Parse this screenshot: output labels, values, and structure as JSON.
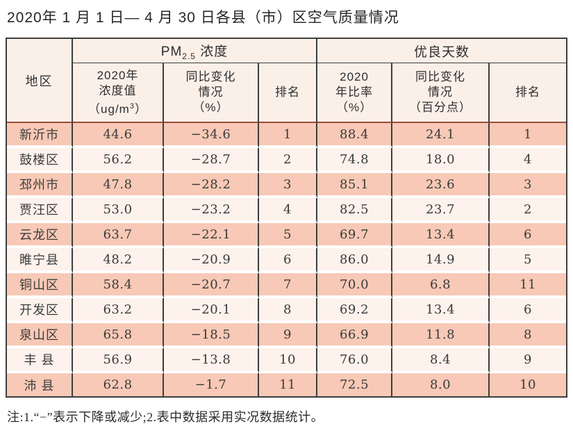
{
  "page": {
    "title": "2020年 1 月 1 日— 4 月 30 日各县（市）区空气质量情况",
    "note": "注:1.“−”表示下降或减少;2.表中数据采用实况数据统计。"
  },
  "colors": {
    "row_salmon": "#f7c9b6",
    "row_light": "#fdf2ec",
    "header_bg": "#fbf0e8",
    "grid_line": "#3d3d3d",
    "header_rule_maroon": "#9c4b3b"
  },
  "table": {
    "header": {
      "region": "地区",
      "pm_group_base": "PM",
      "pm_group_sub": "2.5",
      "pm_group_rest": " 浓度",
      "good_group": "优良天数",
      "conc_l1": "2020年",
      "conc_l2": "浓度值",
      "conc_l3_pre": "（ug/m",
      "conc_l3_sup": "3",
      "conc_l3_post": "）",
      "pm_change_l1": "同比变化",
      "pm_change_l2": "情况",
      "pm_change_l3": "（%）",
      "pm_rank": "排名",
      "ratio_l1": "2020",
      "ratio_l2": "年比率",
      "ratio_l3": "（%）",
      "good_change_l1": "同比变化",
      "good_change_l2": "情况",
      "good_change_l3": "（百分点）",
      "good_rank": "排名"
    },
    "rows": [
      {
        "region": "新沂市",
        "pm_value": "44.6",
        "pm_change": "−34.6",
        "pm_rank": "1",
        "good_ratio": "88.4",
        "good_change": "24.1",
        "good_rank": "1"
      },
      {
        "region": "鼓楼区",
        "pm_value": "56.2",
        "pm_change": "−28.7",
        "pm_rank": "2",
        "good_ratio": "74.8",
        "good_change": "18.0",
        "good_rank": "4"
      },
      {
        "region": "邳州市",
        "pm_value": "47.8",
        "pm_change": "−28.2",
        "pm_rank": "3",
        "good_ratio": "85.1",
        "good_change": "23.6",
        "good_rank": "3"
      },
      {
        "region": "贾汪区",
        "pm_value": "53.0",
        "pm_change": "−23.2",
        "pm_rank": "4",
        "good_ratio": "82.5",
        "good_change": "23.7",
        "good_rank": "2"
      },
      {
        "region": "云龙区",
        "pm_value": "63.7",
        "pm_change": "−22.1",
        "pm_rank": "5",
        "good_ratio": "69.7",
        "good_change": "13.4",
        "good_rank": "6"
      },
      {
        "region": "睢宁县",
        "pm_value": "48.2",
        "pm_change": "−20.9",
        "pm_rank": "6",
        "good_ratio": "86.0",
        "good_change": "14.9",
        "good_rank": "5"
      },
      {
        "region": "铜山区",
        "pm_value": "58.4",
        "pm_change": "−20.7",
        "pm_rank": "7",
        "good_ratio": "70.0",
        "good_change": "6.8",
        "good_rank": "11"
      },
      {
        "region": "开发区",
        "pm_value": "63.2",
        "pm_change": "−20.1",
        "pm_rank": "8",
        "good_ratio": "69.2",
        "good_change": "13.4",
        "good_rank": "6"
      },
      {
        "region": "泉山区",
        "pm_value": "65.8",
        "pm_change": "−18.5",
        "pm_rank": "9",
        "good_ratio": "66.9",
        "good_change": "11.8",
        "good_rank": "8"
      },
      {
        "region": "丰 县",
        "pm_value": "56.9",
        "pm_change": "−13.8",
        "pm_rank": "10",
        "good_ratio": "76.0",
        "good_change": "8.4",
        "good_rank": "9"
      },
      {
        "region": "沛 县",
        "pm_value": "62.8",
        "pm_change": "−1.7",
        "pm_rank": "11",
        "good_ratio": "72.5",
        "good_change": "8.0",
        "good_rank": "10"
      }
    ]
  }
}
